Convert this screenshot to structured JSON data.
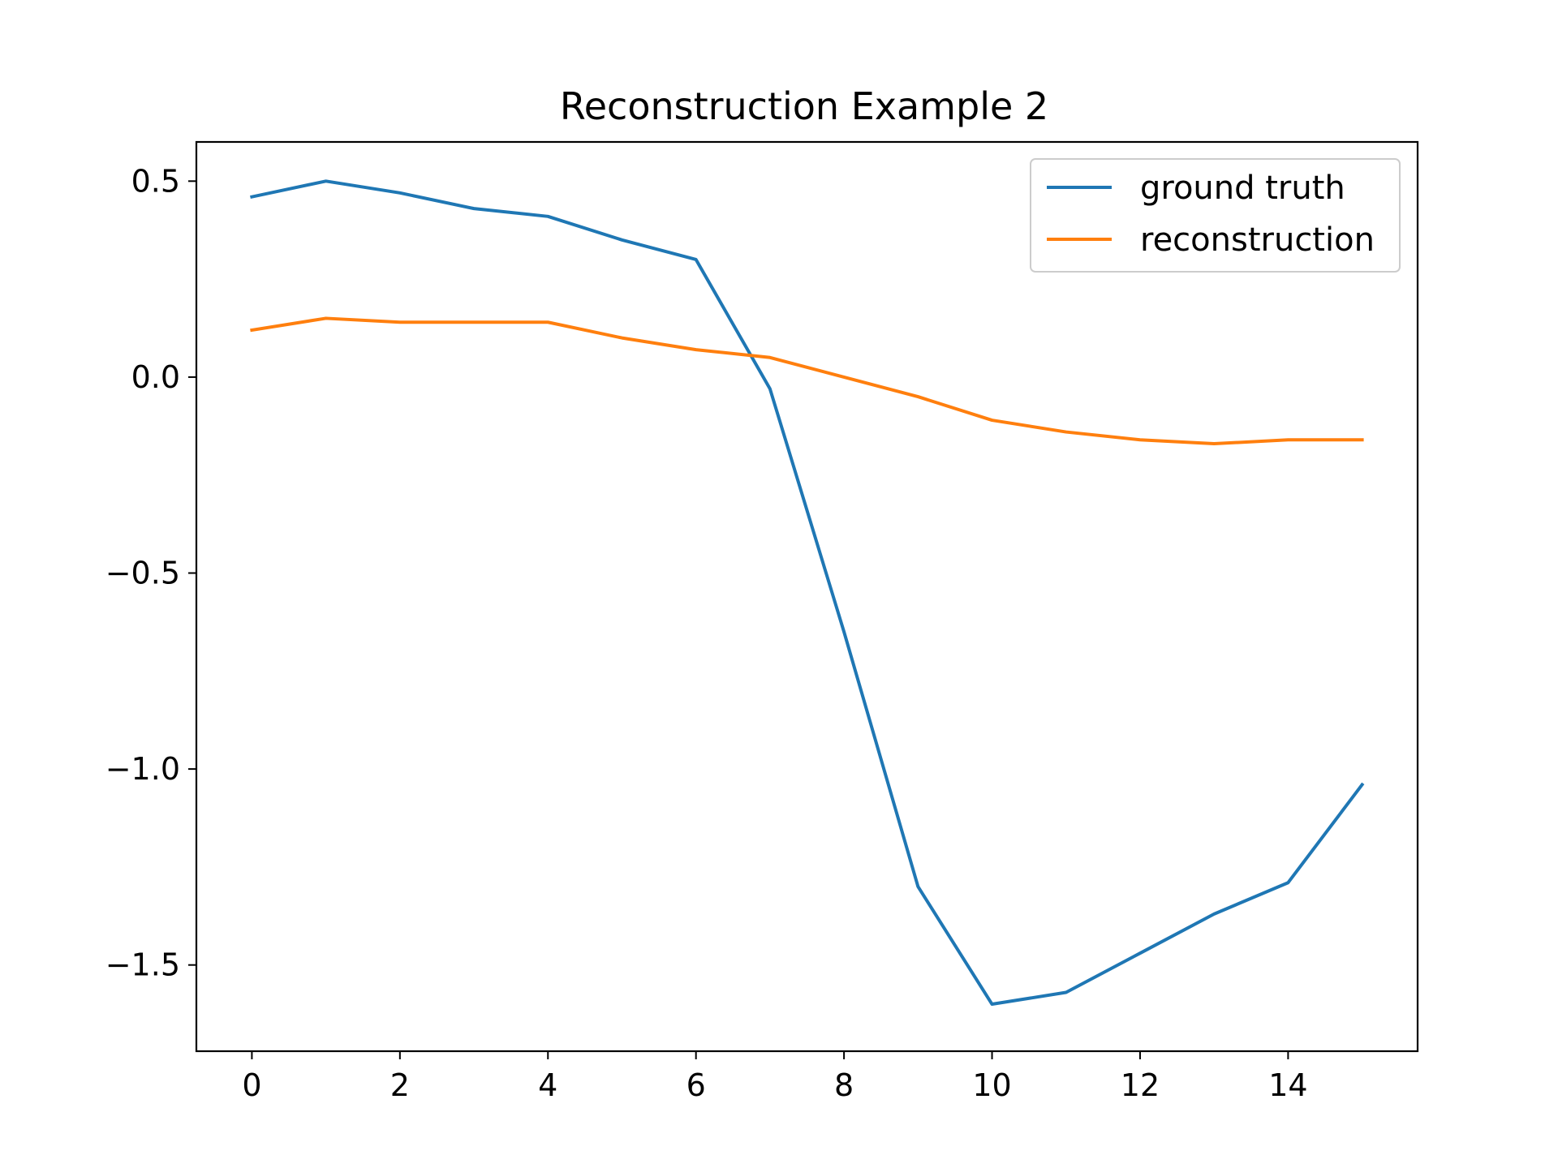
{
  "chart_data": {
    "type": "line",
    "title": "Reconstruction Example 2",
    "xlabel": "",
    "ylabel": "",
    "xlim": [
      -0.75,
      15.75
    ],
    "ylim": [
      -1.72,
      0.6
    ],
    "x_ticks": [
      0,
      2,
      4,
      6,
      8,
      10,
      12,
      14
    ],
    "x_tick_labels": [
      "0",
      "2",
      "4",
      "6",
      "8",
      "10",
      "12",
      "14"
    ],
    "y_ticks": [
      0.5,
      0.0,
      -0.5,
      -1.0,
      -1.5
    ],
    "y_tick_labels": [
      "0.5",
      "0.0",
      "−0.5",
      "−1.0",
      "−1.5"
    ],
    "grid": false,
    "legend_position": "top-right",
    "x": [
      0,
      1,
      2,
      3,
      4,
      5,
      6,
      7,
      8,
      9,
      10,
      11,
      12,
      13,
      14,
      15
    ],
    "series": [
      {
        "name": "ground truth",
        "color": "#1f77b4",
        "values": [
          0.46,
          0.5,
          0.47,
          0.43,
          0.41,
          0.35,
          0.3,
          -0.03,
          -0.65,
          -1.3,
          -1.6,
          -1.57,
          -1.47,
          -1.37,
          -1.29,
          -1.04
        ]
      },
      {
        "name": "reconstruction",
        "color": "#ff7f0e",
        "values": [
          0.12,
          0.15,
          0.14,
          0.14,
          0.14,
          0.1,
          0.07,
          0.05,
          0.0,
          -0.05,
          -0.11,
          -0.14,
          -0.16,
          -0.17,
          -0.16,
          -0.16
        ]
      }
    ]
  }
}
